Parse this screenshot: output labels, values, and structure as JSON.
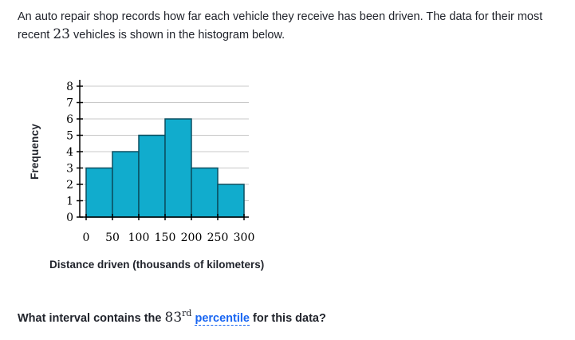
{
  "intro": {
    "text_before": "An auto repair shop records how far each vehicle they receive has been driven. The data for their most recent ",
    "count": "23",
    "text_after": " vehicles is shown in the histogram below."
  },
  "question": {
    "text_before": "What interval contains the ",
    "ordinal_number": "83",
    "ordinal_suffix": "rd",
    "link_text": "percentile",
    "text_after": " for this data?"
  },
  "chart_data": {
    "type": "bar",
    "xlabel": "Distance driven (thousands of kilometers)",
    "ylabel": "Frequency",
    "bin_edges": [
      0,
      50,
      100,
      150,
      200,
      250,
      300
    ],
    "categories": [
      "0-50",
      "50-100",
      "100-150",
      "150-200",
      "200-250",
      "250-300"
    ],
    "values": [
      3,
      4,
      5,
      6,
      3,
      2
    ],
    "ylim": [
      0,
      8
    ],
    "xlim": [
      0,
      300
    ],
    "x_ticks": [
      "0",
      "50",
      "100",
      "150",
      "200",
      "250",
      "300"
    ],
    "y_ticks": [
      "0",
      "1",
      "2",
      "3",
      "4",
      "5",
      "6",
      "7",
      "8"
    ],
    "grid": true,
    "bar_color": "#11accd",
    "bar_edge_color": "#0b4f60",
    "grid_color": "#c8c8c8"
  }
}
